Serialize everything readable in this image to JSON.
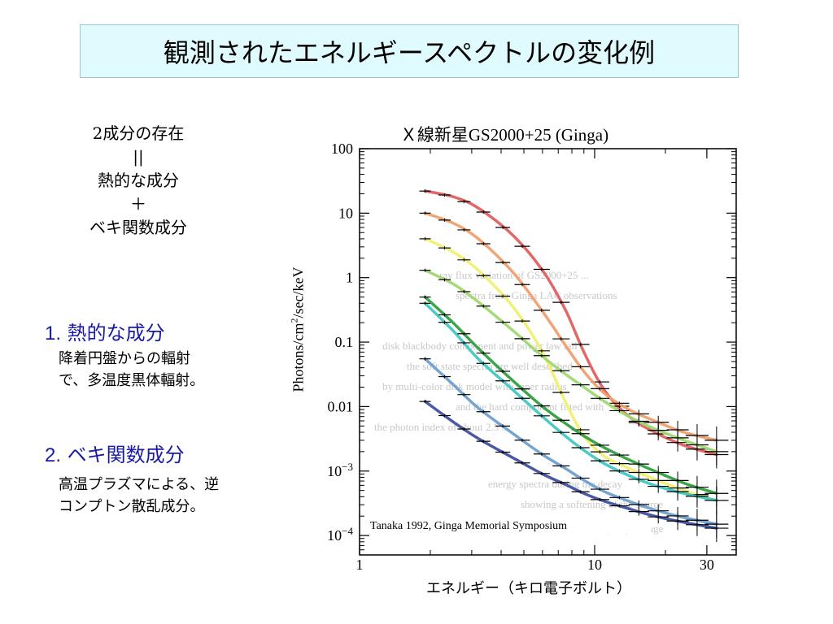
{
  "slide_title": "観測されたエネルギースペクトルの変化例",
  "left_notes": {
    "line1": "2成分の存在",
    "line2": "||",
    "line3": "熱的な成分",
    "line4": "＋",
    "line5": "ベキ関数成分"
  },
  "sections": [
    {
      "number": "1.",
      "heading": "熱的な成分",
      "body": [
        "降着円盤からの輻射",
        "で、多温度黒体輻射。"
      ]
    },
    {
      "number": "2.",
      "heading": "ベキ関数成分",
      "body": [
        "高温プラズマによる、逆",
        "コンプトン散乱成分。"
      ]
    }
  ],
  "chart_data": {
    "type": "line",
    "title": "Ｘ線新星GS2000+25 (Ginga)",
    "xlabel": "エネルギー（キロ電子ボルト）",
    "ylabel": "Photons/cm2/sec/keV",
    "x_scale": "log",
    "y_scale": "log",
    "xlim": [
      1,
      40
    ],
    "ylim": [
      5e-05,
      100
    ],
    "x_ticks": [
      {
        "value": 1,
        "label": "1"
      },
      {
        "value": 10,
        "label": "10"
      },
      {
        "value": 30,
        "label": "30"
      }
    ],
    "y_ticks": [
      {
        "value": 100,
        "label": "100"
      },
      {
        "value": 10,
        "label": "10"
      },
      {
        "value": 1,
        "label": "1"
      },
      {
        "value": 0.1,
        "label": "0.1"
      },
      {
        "value": 0.01,
        "label": "0.01"
      },
      {
        "value": 0.001,
        "label": "10−3"
      },
      {
        "value": 0.0001,
        "label": "10−4"
      }
    ],
    "annotation": "Tanaka 1992, Ginga Memorial Symposium",
    "grid": false,
    "series": [
      {
        "color": "#e06060",
        "x": [
          1.9,
          2.5,
          3.2,
          4.5,
          6,
          7.5,
          9,
          11,
          14,
          18,
          24,
          33
        ],
        "y": [
          22,
          18,
          12,
          4.5,
          1.3,
          0.32,
          0.07,
          0.018,
          0.007,
          0.004,
          0.0025,
          0.0018
        ]
      },
      {
        "color": "#f0a070",
        "x": [
          1.9,
          2.5,
          3.2,
          4.5,
          6,
          7.5,
          9,
          11,
          14,
          18,
          24,
          33
        ],
        "y": [
          10,
          7,
          4,
          1.2,
          0.3,
          0.09,
          0.035,
          0.016,
          0.009,
          0.006,
          0.004,
          0.003
        ]
      },
      {
        "color": "#f0f070",
        "x": [
          1.9,
          2.5,
          3.2,
          4.5,
          6,
          7.5,
          9,
          11,
          14,
          18,
          24,
          33
        ],
        "y": [
          4,
          2.5,
          1.3,
          0.35,
          0.07,
          0.012,
          0.0035,
          0.0017,
          0.0011,
          0.00075,
          0.0005,
          0.00035
        ]
      },
      {
        "color": "#a0d870",
        "x": [
          1.9,
          2.5,
          3.2,
          4.5,
          6,
          7.5,
          9,
          11,
          14,
          18,
          24,
          33
        ],
        "y": [
          1.3,
          0.8,
          0.42,
          0.15,
          0.06,
          0.032,
          0.02,
          0.012,
          0.007,
          0.0045,
          0.003,
          0.002
        ]
      },
      {
        "color": "#40c8c0",
        "x": [
          1.9,
          2.5,
          3.2,
          4.5,
          6,
          7.5,
          9,
          11,
          14,
          18,
          24,
          33
        ],
        "y": [
          0.4,
          0.15,
          0.055,
          0.018,
          0.007,
          0.0035,
          0.0021,
          0.0013,
          0.00085,
          0.0006,
          0.00045,
          0.00035
        ]
      },
      {
        "color": "#30a040",
        "x": [
          1.9,
          2.5,
          3.2,
          4.5,
          6,
          7.5,
          9,
          11,
          14,
          18,
          24,
          33
        ],
        "y": [
          0.5,
          0.2,
          0.08,
          0.025,
          0.01,
          0.0055,
          0.0035,
          0.0023,
          0.0015,
          0.001,
          0.00065,
          0.00045
        ]
      },
      {
        "color": "#70a0d0",
        "x": [
          1.9,
          2.5,
          3.2,
          4.5,
          6,
          7.5,
          9,
          11,
          14,
          18,
          24,
          33
        ],
        "y": [
          0.055,
          0.022,
          0.0095,
          0.0038,
          0.0018,
          0.0011,
          0.00072,
          0.00048,
          0.00034,
          0.00025,
          0.00019,
          0.00015
        ]
      },
      {
        "color": "#4050a0",
        "x": [
          1.9,
          2.5,
          3.2,
          4.5,
          6,
          7.5,
          9,
          11,
          14,
          18,
          24,
          33
        ],
        "y": [
          0.012,
          0.0058,
          0.0032,
          0.0016,
          0.0009,
          0.00062,
          0.00045,
          0.00034,
          0.00026,
          0.0002,
          0.00016,
          0.00013
        ]
      }
    ]
  }
}
